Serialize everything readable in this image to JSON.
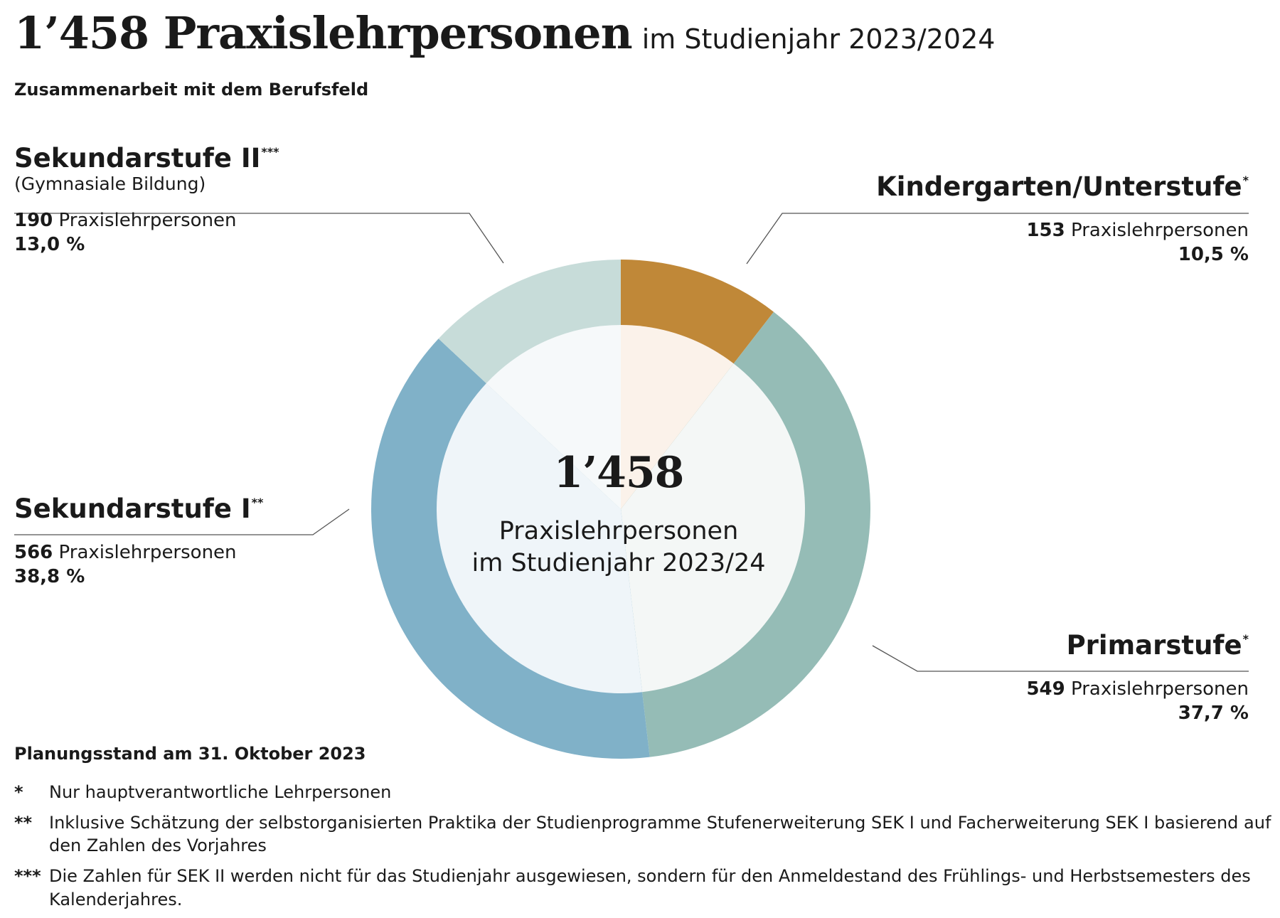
{
  "header": {
    "title": "1’458 Praxislehrpersonen",
    "title_suffix": "im Studienjahr 2023/2024",
    "subtitle": "Zusammenarbeit mit dem Berufsfeld"
  },
  "center": {
    "number": "1’458",
    "line1": "Praxislehrpersonen",
    "line2": "im Studienjahr 2023/24"
  },
  "segments": {
    "kiga": {
      "name": "Kindergarten/Unterstufe",
      "mark": "*",
      "count": "153",
      "count_label": "Praxislehrpersonen",
      "pct": "10,5 %"
    },
    "primar": {
      "name": "Primarstufe",
      "mark": "*",
      "count": "549",
      "count_label": "Praxislehrpersonen",
      "pct": "37,7 %"
    },
    "sek1": {
      "name": "Sekundarstufe I",
      "mark": "**",
      "count": "566",
      "count_label": "Praxislehrpersonen",
      "pct": "38,8 %"
    },
    "sek2": {
      "name": "Sekundarstufe II",
      "mark": "***",
      "note": "(Gymnasiale Bildung)",
      "count": "190",
      "count_label": "Praxislehrpersonen",
      "pct": "13,0 %"
    }
  },
  "planungsstand": "Planungsstand am 31. Oktober 2023",
  "footnotes": [
    {
      "mark": "*",
      "text": "Nur hauptverantwortliche Lehrpersonen"
    },
    {
      "mark": "**",
      "text": "Inklusive Schätzung der selbstorganisierten Praktika der Studienprogramme Stufenerweiterung SEK I und Facherweiterung SEK I basierend auf den Zahlen des Vorjahres"
    },
    {
      "mark": "***",
      "text": "Die Zahlen für SEK II werden nicht für das Studienjahr ausgewiesen, sondern für den Anmeldestand des Frühlings- und Herbstsemesters des Kalenderjahres."
    }
  ],
  "chart_data": {
    "type": "pie",
    "style": "donut",
    "total": 1458,
    "categories": [
      "Kindergarten/Unterstufe",
      "Primarstufe",
      "Sekundarstufe I",
      "Sekundarstufe II"
    ],
    "values": [
      153,
      549,
      566,
      190
    ],
    "percentages": [
      10.5,
      37.7,
      38.8,
      13.0
    ],
    "colors": [
      "#c08838",
      "#95bcb6",
      "#80b1c8",
      "#c7dcd9"
    ],
    "inner_colors": [
      "#fbf2ea",
      "#f4f7f6",
      "#eff5f9",
      "#f6f9fa"
    ],
    "start": "12 o'clock, clockwise"
  }
}
